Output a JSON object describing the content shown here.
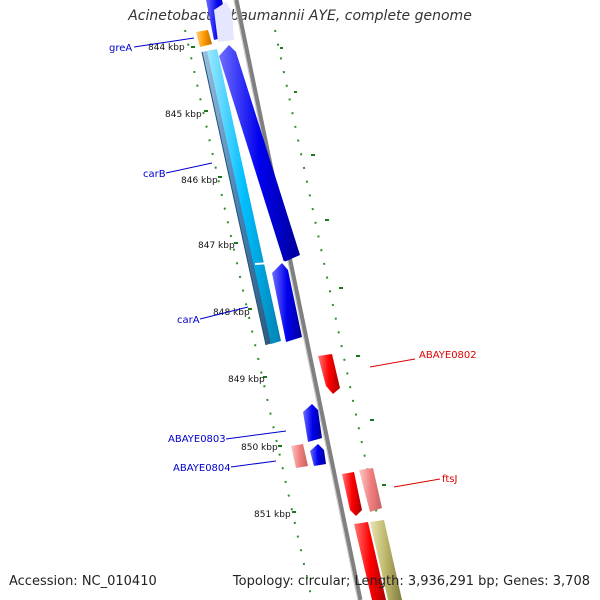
{
  "title": "Acinetobacter baumannii AYE, complete genome",
  "footer": {
    "accession": "Accession: NC_010410",
    "summary": "Topology: circular; Length: 3,936,291 bp; Genes: 3,708"
  },
  "ticks": [
    "844 kbp",
    "845 kbp",
    "846 kbp",
    "847 kbp",
    "848 kbp",
    "849 kbp",
    "850 kbp",
    "851 kbp"
  ],
  "gene_labels": [
    {
      "name": "greA",
      "color": "#0000cc"
    },
    {
      "name": "carB",
      "color": "#0000cc"
    },
    {
      "name": "carA",
      "color": "#0000cc"
    },
    {
      "name": "ABAYE0803",
      "color": "#0000cc"
    },
    {
      "name": "ABAYE0804",
      "color": "#0000cc"
    },
    {
      "name": "ABAYE0802",
      "color": "#dd0000"
    },
    {
      "name": "ftsJ",
      "color": "#dd0000"
    }
  ],
  "colors": {
    "forward_cds": "#0000ee",
    "reverse_cds": "#ff0000",
    "reverse_cds_light": "#f08080",
    "rna_orange": "#ff9900",
    "cyan": "#00bfff",
    "steel": "#4682b4",
    "olive": "#bdb76b",
    "backbone": "#808080",
    "tick_green": "#006600"
  }
}
